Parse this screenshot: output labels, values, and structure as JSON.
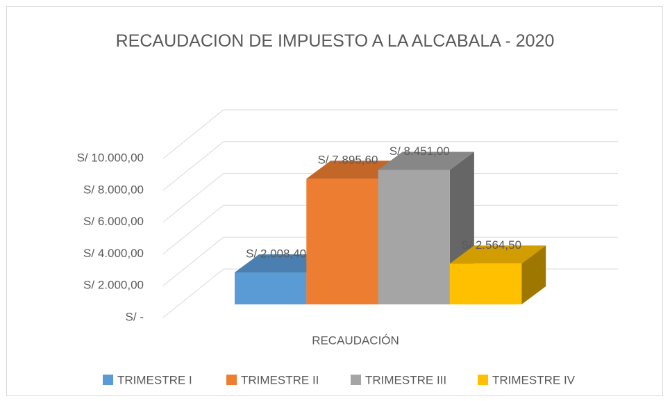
{
  "chart_data": {
    "type": "bar3d",
    "title": "RECAUDACION DE IMPUESTO A LA ALCABALA  - 2020",
    "categories": [
      "RECAUDACIÓN"
    ],
    "series": [
      {
        "name": "TRIMESTRE I",
        "color": "#5b9bd5",
        "values": [
          2008.4
        ],
        "value_labels": [
          "S/ 2.008,40"
        ]
      },
      {
        "name": "TRIMESTRE II",
        "color": "#ed7d31",
        "values": [
          7895.6
        ],
        "value_labels": [
          "S/ 7.895,60"
        ]
      },
      {
        "name": "TRIMESTRE III",
        "color": "#a5a5a5",
        "values": [
          8451
        ],
        "value_labels": [
          "S/ 8.451,00"
        ]
      },
      {
        "name": "TRIMESTRE IV",
        "color": "#ffc000",
        "values": [
          2564.5
        ],
        "value_labels": [
          "S/ 2.564,50"
        ]
      }
    ],
    "ylim": [
      0,
      10000
    ],
    "yticks": [
      {
        "value": 0,
        "label": "S/ -"
      },
      {
        "value": 2000,
        "label": "S/ 2.000,00"
      },
      {
        "value": 4000,
        "label": "S/ 4.000,00"
      },
      {
        "value": 6000,
        "label": "S/ 6.000,00"
      },
      {
        "value": 8000,
        "label": "S/ 8.000,00"
      },
      {
        "value": 10000,
        "label": "S/ 10.000,00"
      }
    ],
    "grid": true,
    "legend": "bottom"
  }
}
